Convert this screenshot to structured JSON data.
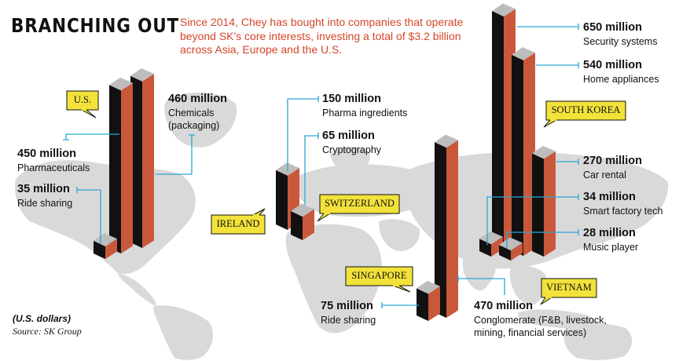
{
  "header": {
    "title": "BRANCHING OUT",
    "subtitle": "Since 2014, Chey has bought into companies that operate beyond SK's core interests, investing a total of $3.2 billion across Asia, Europe and the U.S."
  },
  "footer": {
    "units": "(U.S. dollars)",
    "source": "Source: SK Group"
  },
  "colors": {
    "bar_front": "#c9583b",
    "bar_side": "#111111",
    "bar_top": "#bdbdbd",
    "map": "#d9d9d9",
    "leader_line": "#2ba6d6",
    "callout_fill": "#f2e23a",
    "title_accent": "#d4462a"
  },
  "chart_data": {
    "type": "bar",
    "title": "BRANCHING OUT",
    "units": "U.S. dollars",
    "series": [
      {
        "country": "U.S.",
        "investments": [
          {
            "value": 450,
            "value_label": "450 million",
            "category": "Pharmaceuticals"
          },
          {
            "value": 460,
            "value_label": "460 million",
            "category": "Chemicals\n(packaging)"
          },
          {
            "value": 35,
            "value_label": "35 million",
            "category": "Ride sharing"
          }
        ]
      },
      {
        "country": "IRELAND",
        "investments": [
          {
            "value": 150,
            "value_label": "150 million",
            "category": "Pharma ingredients"
          }
        ]
      },
      {
        "country": "SWITZERLAND",
        "investments": [
          {
            "value": 65,
            "value_label": "65 million",
            "category": "Cryptography"
          }
        ]
      },
      {
        "country": "SINGAPORE",
        "investments": [
          {
            "value": 75,
            "value_label": "75 million",
            "category": "Ride sharing"
          }
        ]
      },
      {
        "country": "VIETNAM",
        "investments": [
          {
            "value": 470,
            "value_label": "470 million",
            "category": "Conglomerate (F&B, livestock,\nmining, financial services)"
          }
        ]
      },
      {
        "country": "SOUTH KOREA",
        "investments": [
          {
            "value": 650,
            "value_label": "650 million",
            "category": "Security systems"
          },
          {
            "value": 540,
            "value_label": "540 million",
            "category": "Home appliances"
          },
          {
            "value": 270,
            "value_label": "270 million",
            "category": "Car rental"
          },
          {
            "value": 34,
            "value_label": "34 million",
            "category": "Smart factory tech"
          },
          {
            "value": 28,
            "value_label": "28 million",
            "category": "Music player"
          }
        ]
      }
    ]
  }
}
